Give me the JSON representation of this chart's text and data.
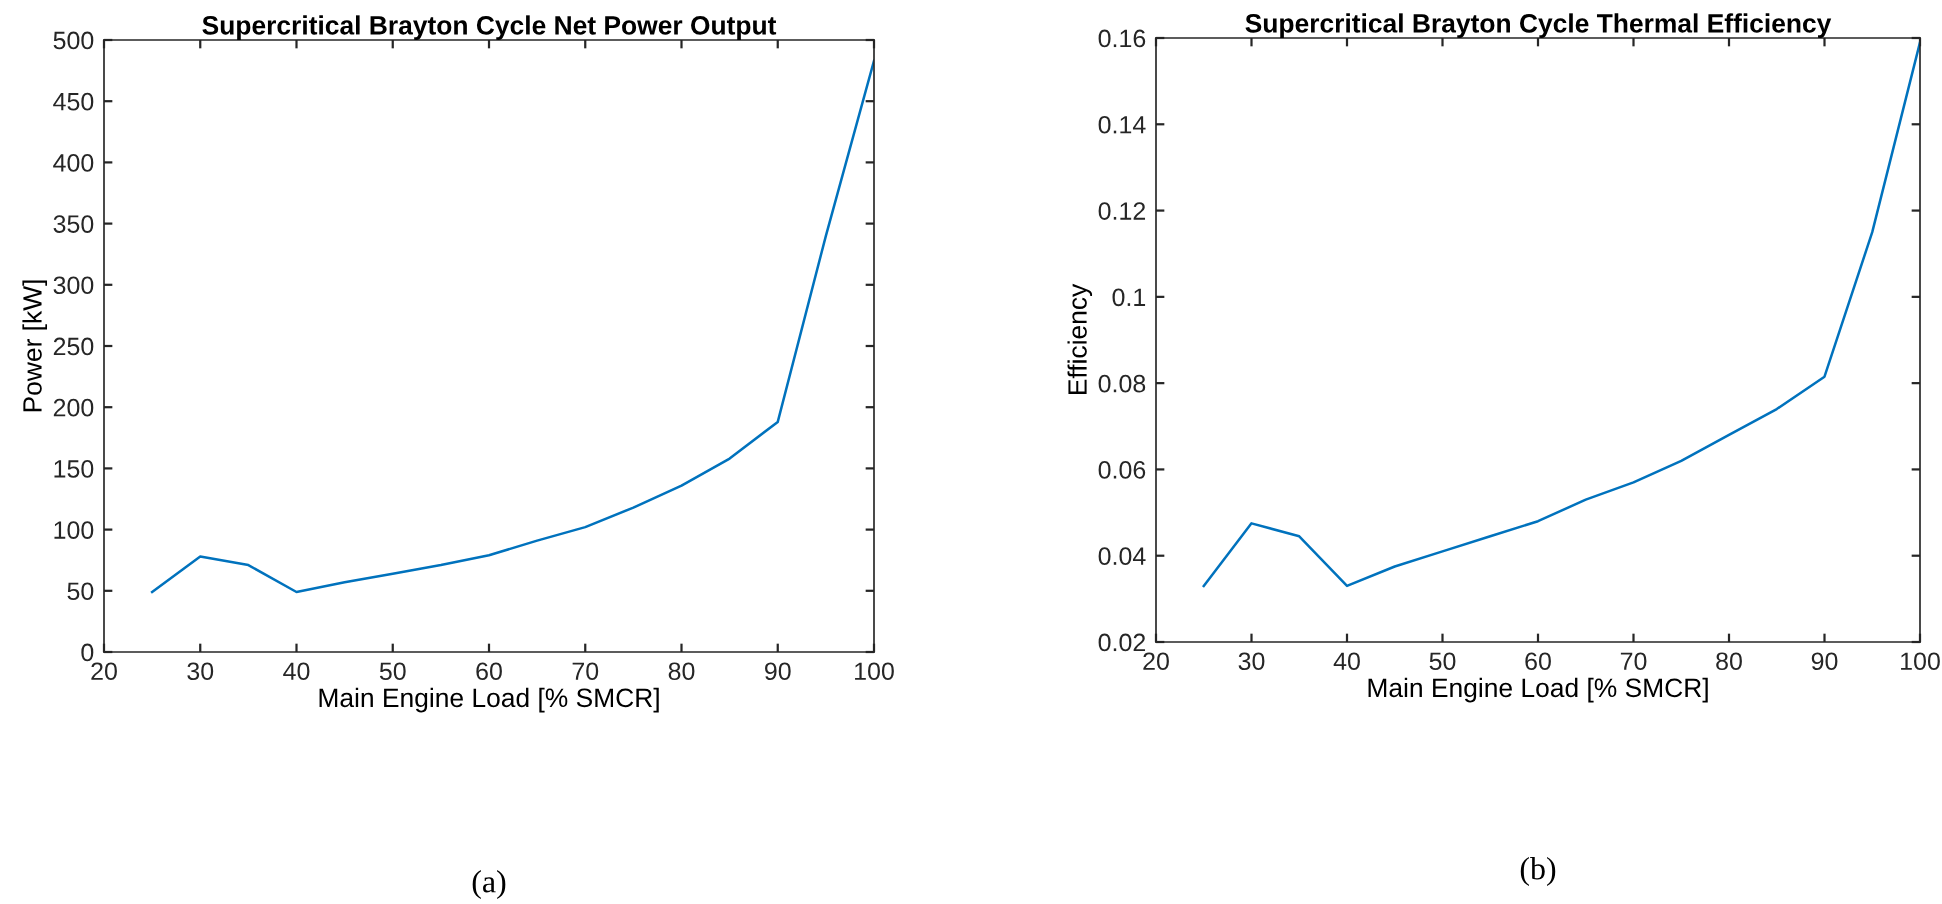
{
  "chart_data": [
    {
      "type": "line",
      "title": "Supercritical Brayton Cycle Net Power Output",
      "xlabel": "Main Engine Load [% SMCR]",
      "ylabel": "Power [kW]",
      "annotations": [
        "(a)"
      ],
      "x": [
        25,
        30,
        35,
        40,
        45,
        50,
        55,
        60,
        65,
        70,
        75,
        80,
        85,
        90,
        95,
        100
      ],
      "series": [
        {
          "color": "#0072bd",
          "values": [
            49,
            78,
            71,
            49,
            57,
            64,
            71,
            79,
            91,
            102,
            118,
            136,
            158,
            188,
            340,
            483
          ]
        }
      ],
      "xlim": [
        20,
        100
      ],
      "xticks": [
        20,
        30,
        40,
        50,
        60,
        70,
        80,
        90,
        100
      ],
      "ylim": [
        0,
        500
      ],
      "yticks": [
        0,
        50,
        100,
        150,
        200,
        250,
        300,
        350,
        400,
        450,
        500
      ],
      "grid": false,
      "line_style": "solid"
    },
    {
      "type": "line",
      "title": "Supercritical Brayton Cycle Thermal Efficiency",
      "xlabel": "Main Engine Load [% SMCR]",
      "ylabel": "Efficiency",
      "annotations": [
        "(b)"
      ],
      "x": [
        25,
        30,
        35,
        40,
        45,
        50,
        55,
        60,
        65,
        70,
        75,
        80,
        85,
        90,
        95,
        100
      ],
      "series": [
        {
          "color": "#0072bd",
          "values": [
            0.033,
            0.0475,
            0.0445,
            0.033,
            0.0375,
            0.041,
            0.0445,
            0.048,
            0.053,
            0.057,
            0.062,
            0.068,
            0.074,
            0.0815,
            0.115,
            0.159
          ]
        }
      ],
      "xlim": [
        20,
        100
      ],
      "xticks": [
        20,
        30,
        40,
        50,
        60,
        70,
        80,
        90,
        100
      ],
      "ylim": [
        0.02,
        0.16
      ],
      "yticks": [
        0.02,
        0.04,
        0.06,
        0.08,
        0.1,
        0.12,
        0.14,
        0.16
      ],
      "grid": false,
      "line_style": "solid"
    }
  ]
}
